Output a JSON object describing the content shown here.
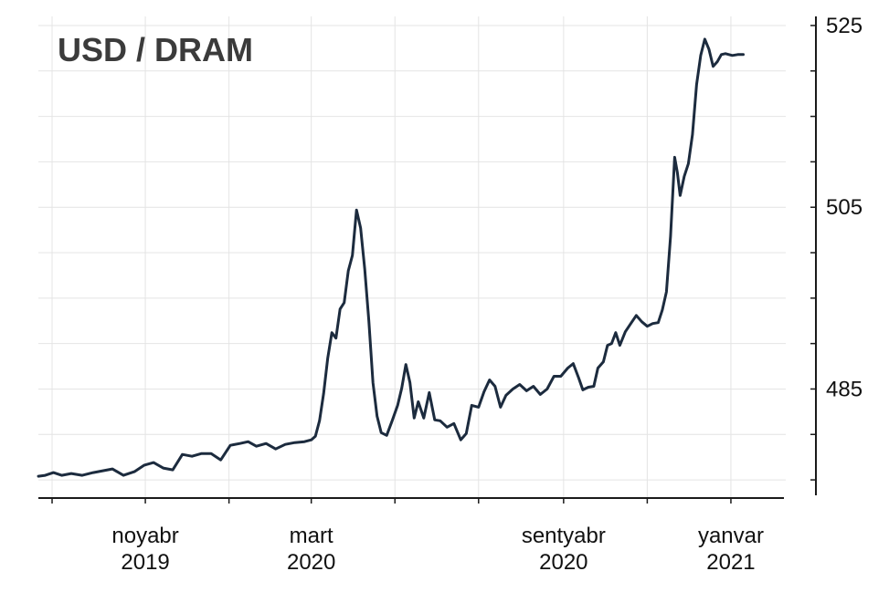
{
  "chart_data": {
    "type": "line",
    "title": "USD / DRAM",
    "xlabel": "",
    "ylabel": "",
    "x_tick_labels": [
      {
        "month": "noyabr",
        "year": "2019",
        "x": "2019-11-01"
      },
      {
        "month": "mart",
        "year": "2020",
        "x": "2020-03-01"
      },
      {
        "month": "sentyabr",
        "year": "2020",
        "x": "2020-09-01"
      },
      {
        "month": "yanvar",
        "year": "2021",
        "x": "2021-01-01"
      }
    ],
    "y_tick_labels": [
      "485",
      "505",
      "525"
    ],
    "xlim": [
      "2019-08-15",
      "2021-02-10"
    ],
    "ylim": [
      473,
      526
    ],
    "grid": true,
    "colors": {
      "line": "#1c2b3e",
      "grid": "#e4e4e4",
      "axis": "#1a1a1a",
      "title": "#3b3b3b"
    },
    "series": [
      {
        "values": [
          [
            "2019-08-15",
            475.4
          ],
          [
            "2019-08-20",
            475.5
          ],
          [
            "2019-08-26",
            475.8
          ],
          [
            "2019-09-01",
            475.5
          ],
          [
            "2019-09-08",
            475.7
          ],
          [
            "2019-09-16",
            475.5
          ],
          [
            "2019-09-24",
            475.8
          ],
          [
            "2019-10-01",
            476.0
          ],
          [
            "2019-10-08",
            476.2
          ],
          [
            "2019-10-16",
            475.5
          ],
          [
            "2019-10-24",
            475.9
          ],
          [
            "2019-10-31",
            476.6
          ],
          [
            "2019-11-07",
            476.9
          ],
          [
            "2019-11-14",
            476.3
          ],
          [
            "2019-11-21",
            476.1
          ],
          [
            "2019-11-28",
            477.8
          ],
          [
            "2019-12-05",
            477.6
          ],
          [
            "2019-12-12",
            477.9
          ],
          [
            "2019-12-19",
            477.9
          ],
          [
            "2019-12-26",
            477.2
          ],
          [
            "2020-01-02",
            478.8
          ],
          [
            "2020-01-09",
            479.0
          ],
          [
            "2020-01-15",
            479.2
          ],
          [
            "2020-01-21",
            478.7
          ],
          [
            "2020-01-28",
            479.0
          ],
          [
            "2020-02-04",
            478.4
          ],
          [
            "2020-02-11",
            478.9
          ],
          [
            "2020-02-18",
            479.1
          ],
          [
            "2020-02-25",
            479.2
          ],
          [
            "2020-03-01",
            479.4
          ],
          [
            "2020-03-04",
            479.8
          ],
          [
            "2020-03-07",
            481.5
          ],
          [
            "2020-03-10",
            484.5
          ],
          [
            "2020-03-13",
            488.4
          ],
          [
            "2020-03-16",
            491.2
          ],
          [
            "2020-03-19",
            490.6
          ],
          [
            "2020-03-22",
            493.8
          ],
          [
            "2020-03-25",
            494.5
          ],
          [
            "2020-03-28",
            498.0
          ],
          [
            "2020-03-31",
            499.7
          ],
          [
            "2020-04-03",
            504.7
          ],
          [
            "2020-04-06",
            502.7
          ],
          [
            "2020-04-09",
            498.2
          ],
          [
            "2020-04-12",
            492.5
          ],
          [
            "2020-04-15",
            485.7
          ],
          [
            "2020-04-18",
            482.0
          ],
          [
            "2020-04-21",
            480.2
          ],
          [
            "2020-04-25",
            479.9
          ],
          [
            "2020-04-29",
            481.5
          ],
          [
            "2020-05-03",
            483.2
          ],
          [
            "2020-05-06",
            485.1
          ],
          [
            "2020-05-09",
            487.7
          ],
          [
            "2020-05-12",
            485.7
          ],
          [
            "2020-05-15",
            481.8
          ],
          [
            "2020-05-18",
            483.6
          ],
          [
            "2020-05-22",
            481.8
          ],
          [
            "2020-05-26",
            484.6
          ],
          [
            "2020-05-30",
            481.6
          ],
          [
            "2020-06-03",
            481.5
          ],
          [
            "2020-06-08",
            480.8
          ],
          [
            "2020-06-13",
            481.2
          ],
          [
            "2020-06-18",
            479.4
          ],
          [
            "2020-06-22",
            480.1
          ],
          [
            "2020-06-26",
            483.2
          ],
          [
            "2020-07-01",
            483.0
          ],
          [
            "2020-07-05",
            484.7
          ],
          [
            "2020-07-09",
            486.0
          ],
          [
            "2020-07-13",
            485.3
          ],
          [
            "2020-07-17",
            483.0
          ],
          [
            "2020-07-21",
            484.3
          ],
          [
            "2020-07-26",
            485.0
          ],
          [
            "2020-07-31",
            485.5
          ],
          [
            "2020-08-05",
            484.8
          ],
          [
            "2020-08-10",
            485.3
          ],
          [
            "2020-08-15",
            484.4
          ],
          [
            "2020-08-20",
            485.0
          ],
          [
            "2020-08-25",
            486.4
          ],
          [
            "2020-08-30",
            486.4
          ],
          [
            "2020-09-04",
            487.3
          ],
          [
            "2020-09-08",
            487.8
          ],
          [
            "2020-09-12",
            486.2
          ],
          [
            "2020-09-15",
            484.9
          ],
          [
            "2020-09-19",
            485.2
          ],
          [
            "2020-09-23",
            485.3
          ],
          [
            "2020-09-26",
            487.3
          ],
          [
            "2020-09-30",
            488.0
          ],
          [
            "2020-10-03",
            489.8
          ],
          [
            "2020-10-06",
            490.0
          ],
          [
            "2020-10-09",
            491.2
          ],
          [
            "2020-10-12",
            489.8
          ],
          [
            "2020-10-16",
            491.3
          ],
          [
            "2020-10-20",
            492.2
          ],
          [
            "2020-10-24",
            493.1
          ],
          [
            "2020-10-28",
            492.4
          ],
          [
            "2020-11-01",
            491.9
          ],
          [
            "2020-11-05",
            492.2
          ],
          [
            "2020-11-09",
            492.3
          ],
          [
            "2020-11-12",
            493.7
          ],
          [
            "2020-11-15",
            495.7
          ],
          [
            "2020-11-18",
            501.8
          ],
          [
            "2020-11-21",
            510.5
          ],
          [
            "2020-11-23",
            508.8
          ],
          [
            "2020-11-25",
            506.3
          ],
          [
            "2020-11-28",
            508.4
          ],
          [
            "2020-12-01",
            509.8
          ],
          [
            "2020-12-04",
            513.0
          ],
          [
            "2020-12-07",
            518.5
          ],
          [
            "2020-12-10",
            521.7
          ],
          [
            "2020-12-13",
            523.5
          ],
          [
            "2020-12-16",
            522.4
          ],
          [
            "2020-12-19",
            520.5
          ],
          [
            "2020-12-22",
            521.0
          ],
          [
            "2020-12-25",
            521.8
          ],
          [
            "2020-12-28",
            521.9
          ],
          [
            "2021-01-02",
            521.7
          ],
          [
            "2021-01-06",
            521.8
          ],
          [
            "2021-01-10",
            521.8
          ]
        ]
      }
    ]
  }
}
